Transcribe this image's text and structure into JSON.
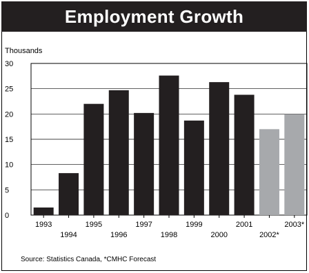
{
  "title": "Employment Growth",
  "source": "Source:  Statistics Canada, *CMHC Forecast",
  "colors": {
    "title_bg": "#231f20",
    "actual": "#231f20",
    "forecast": "#a7a9ac"
  },
  "chart_data": {
    "type": "bar",
    "title": "Employment Growth",
    "ylabel": "Thousands",
    "xlabel": "",
    "ylim": [
      0,
      30
    ],
    "yticks": [
      0,
      5,
      10,
      15,
      20,
      25,
      30
    ],
    "grid": true,
    "categories": [
      "1993",
      "1994",
      "1995",
      "1996",
      "1997",
      "1998",
      "1999",
      "2000",
      "2001",
      "2002*",
      "2003*"
    ],
    "values": [
      1.5,
      8.3,
      22.0,
      24.7,
      20.2,
      27.6,
      18.7,
      26.3,
      23.8,
      17.0,
      20.0
    ],
    "forecast": [
      false,
      false,
      false,
      false,
      false,
      false,
      false,
      false,
      false,
      true,
      true
    ]
  }
}
